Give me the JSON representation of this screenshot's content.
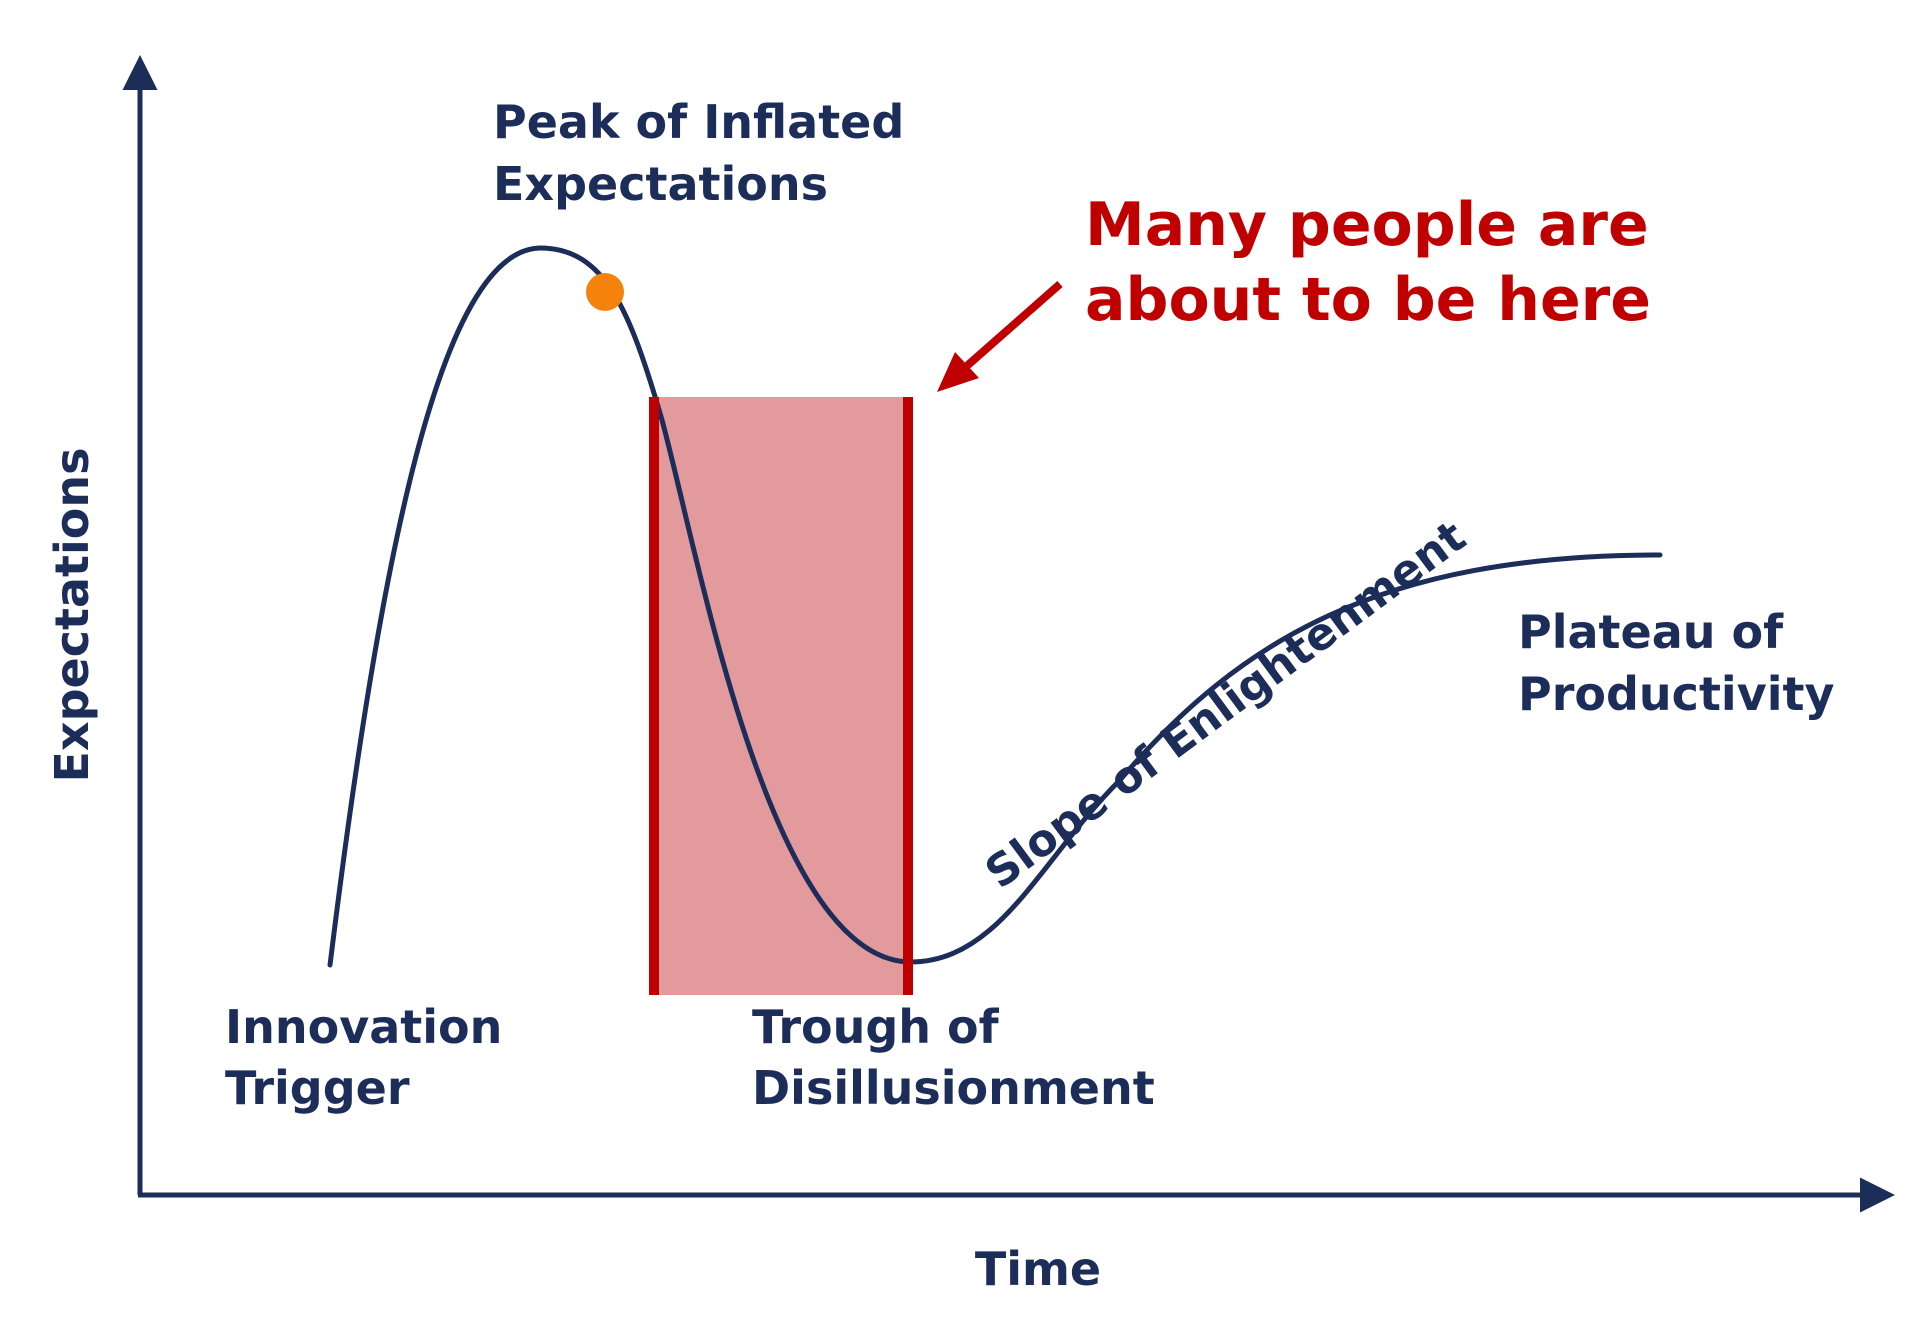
{
  "axes": {
    "x_label": "Time",
    "y_label": "Expectations"
  },
  "phases": {
    "innovation_trigger": [
      "Innovation",
      "Trigger"
    ],
    "peak": [
      "Peak of Inflated",
      "Expectations"
    ],
    "trough": [
      "Trough of",
      "Disillusionment"
    ],
    "slope": "Slope of Enlightenment",
    "plateau": [
      "Plateau of",
      "Productivity"
    ]
  },
  "annotation": {
    "text": [
      "Many people are",
      "about to be here"
    ]
  },
  "colors": {
    "curve": "#1c2d5a",
    "highlight_fill": "#e39a9c",
    "highlight_edge": "#c00000",
    "marker": "#f5820d",
    "annotation": "#c00000"
  },
  "icons": {
    "current_position_marker": "orange-dot-marker",
    "annotation_arrow": "red-arrow"
  }
}
